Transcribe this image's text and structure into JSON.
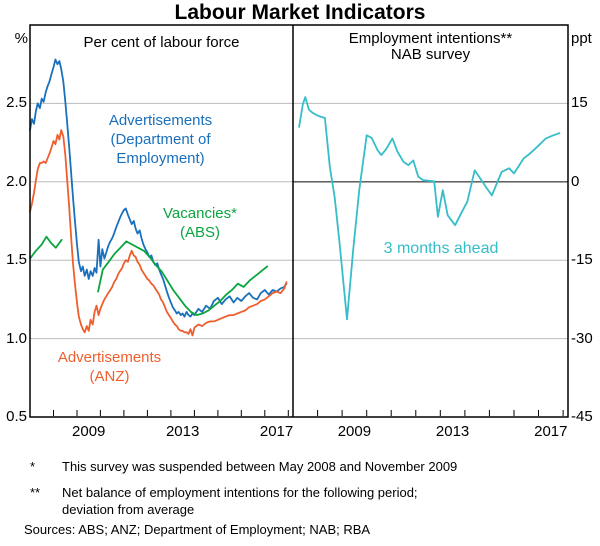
{
  "title": "Labour Market Indicators",
  "footnotes": [
    {
      "marker": "*",
      "text": "This survey was suspended between May 2008 and November 2009"
    },
    {
      "marker": "**",
      "text": "Net balance of employment intentions for the following period; deviation from average"
    }
  ],
  "sources": "Sources: ABS; ANZ; Department of Employment; NAB; RBA",
  "colors": {
    "blue": "#1a70bd",
    "orange": "#ee5f2d",
    "green": "#0aa53f",
    "cyan": "#35bdc8",
    "grid": "#bcbcbc",
    "zero_line": "#4d4d4d",
    "frame": "#000000"
  },
  "chart_data": [
    {
      "type": "line",
      "panel": "left",
      "header": "Per cent of labour force",
      "unit": "%",
      "ylim": [
        0.5,
        3.0
      ],
      "yticks": [
        0.5,
        1.0,
        1.5,
        2.0,
        2.5
      ],
      "ytick_labels": [
        "0.5",
        "1.0",
        "1.5",
        "2.0",
        "2.5"
      ],
      "xlim": [
        2007.0,
        2018.2
      ],
      "grid": true,
      "xtick_labels": [
        {
          "label": "2009",
          "at": 2009.5
        },
        {
          "label": "2013",
          "at": 2013.5
        },
        {
          "label": "2017",
          "at": 2017.5
        }
      ],
      "series": [
        {
          "name": "Advertisements (Department of Employment)",
          "color": "#1a70bd",
          "segments": [
            {
              "x": [
                2007.0,
                2007.08,
                2007.17,
                2007.25,
                2007.33,
                2007.42,
                2007.5,
                2007.58,
                2007.67,
                2007.75,
                2007.83,
                2007.92,
                2008.0,
                2008.08,
                2008.17,
                2008.25,
                2008.33,
                2008.42,
                2008.5,
                2008.58,
                2008.67,
                2008.75,
                2008.83,
                2008.92,
                2009.0,
                2009.08,
                2009.17,
                2009.25,
                2009.33,
                2009.42,
                2009.5,
                2009.58,
                2009.67,
                2009.75,
                2009.83,
                2009.92,
                2010.0,
                2010.08,
                2010.17,
                2010.25,
                2010.33,
                2010.42,
                2010.5,
                2010.58,
                2010.67,
                2010.75,
                2010.83,
                2010.92,
                2011.0,
                2011.08,
                2011.17,
                2011.25,
                2011.33,
                2011.42,
                2011.5,
                2011.58,
                2011.67,
                2011.75,
                2011.83,
                2011.92,
                2012.0,
                2012.08,
                2012.17,
                2012.25,
                2012.33,
                2012.42,
                2012.5,
                2012.58,
                2012.67,
                2012.75,
                2012.83,
                2012.92,
                2013.0,
                2013.08,
                2013.17,
                2013.25,
                2013.33,
                2013.42,
                2013.5,
                2013.58,
                2013.67,
                2013.75,
                2013.83,
                2013.92,
                2014.0,
                2014.17,
                2014.33,
                2014.5,
                2014.67,
                2014.83,
                2015.0,
                2015.17,
                2015.33,
                2015.5,
                2015.67,
                2015.83,
                2016.0,
                2016.17,
                2016.33,
                2016.5,
                2016.67,
                2016.83,
                2017.0,
                2017.17,
                2017.33,
                2017.5,
                2017.67,
                2017.83,
                2017.92
              ],
              "y": [
                2.33,
                2.4,
                2.37,
                2.45,
                2.5,
                2.47,
                2.53,
                2.51,
                2.57,
                2.61,
                2.64,
                2.69,
                2.73,
                2.78,
                2.75,
                2.77,
                2.72,
                2.64,
                2.52,
                2.38,
                2.22,
                2.06,
                1.9,
                1.74,
                1.6,
                1.49,
                1.43,
                1.46,
                1.4,
                1.44,
                1.38,
                1.43,
                1.4,
                1.45,
                1.42,
                1.63,
                1.46,
                1.57,
                1.51,
                1.55,
                1.59,
                1.62,
                1.64,
                1.67,
                1.71,
                1.74,
                1.77,
                1.8,
                1.82,
                1.83,
                1.79,
                1.76,
                1.73,
                1.75,
                1.7,
                1.67,
                1.69,
                1.64,
                1.6,
                1.57,
                1.55,
                1.52,
                1.53,
                1.49,
                1.47,
                1.48,
                1.44,
                1.41,
                1.38,
                1.34,
                1.3,
                1.26,
                1.23,
                1.2,
                1.18,
                1.16,
                1.17,
                1.15,
                1.16,
                1.14,
                1.17,
                1.15,
                1.14,
                1.16,
                1.15,
                1.19,
                1.17,
                1.21,
                1.19,
                1.24,
                1.26,
                1.22,
                1.25,
                1.27,
                1.23,
                1.26,
                1.24,
                1.27,
                1.29,
                1.26,
                1.25,
                1.29,
                1.31,
                1.28,
                1.31,
                1.3,
                1.32,
                1.33,
                1.35
              ]
            }
          ]
        },
        {
          "name": "Advertisements (ANZ)",
          "color": "#ee5f2d",
          "segments": [
            {
              "x": [
                2007.0,
                2007.08,
                2007.17,
                2007.25,
                2007.33,
                2007.42,
                2007.5,
                2007.58,
                2007.67,
                2007.75,
                2007.83,
                2007.92,
                2008.0,
                2008.08,
                2008.17,
                2008.25,
                2008.33,
                2008.42,
                2008.5,
                2008.58,
                2008.67,
                2008.75,
                2008.83,
                2008.92,
                2009.0,
                2009.08,
                2009.17,
                2009.25,
                2009.33,
                2009.42,
                2009.5,
                2009.58,
                2009.67,
                2009.75,
                2009.83,
                2009.92,
                2010.0,
                2010.08,
                2010.17,
                2010.25,
                2010.33,
                2010.42,
                2010.5,
                2010.58,
                2010.67,
                2010.75,
                2010.83,
                2010.92,
                2011.0,
                2011.08,
                2011.17,
                2011.25,
                2011.33,
                2011.42,
                2011.5,
                2011.58,
                2011.67,
                2011.75,
                2011.83,
                2011.92,
                2012.0,
                2012.08,
                2012.17,
                2012.25,
                2012.33,
                2012.42,
                2012.5,
                2012.58,
                2012.67,
                2012.75,
                2012.83,
                2012.92,
                2013.0,
                2013.08,
                2013.17,
                2013.25,
                2013.33,
                2013.42,
                2013.5,
                2013.58,
                2013.67,
                2013.75,
                2013.83,
                2013.92,
                2014.0,
                2014.17,
                2014.33,
                2014.5,
                2014.67,
                2014.83,
                2015.0,
                2015.17,
                2015.33,
                2015.5,
                2015.67,
                2015.83,
                2016.0,
                2016.17,
                2016.33,
                2016.5,
                2016.67,
                2016.83,
                2017.0,
                2017.17,
                2017.33,
                2017.5,
                2017.67,
                2017.83,
                2017.92
              ],
              "y": [
                1.81,
                1.86,
                1.93,
                2.01,
                2.08,
                2.12,
                2.12,
                2.13,
                2.12,
                2.15,
                2.18,
                2.22,
                2.26,
                2.24,
                2.3,
                2.27,
                2.33,
                2.29,
                2.18,
                2.02,
                1.84,
                1.65,
                1.48,
                1.34,
                1.23,
                1.14,
                1.09,
                1.06,
                1.04,
                1.08,
                1.05,
                1.12,
                1.09,
                1.17,
                1.21,
                1.15,
                1.19,
                1.22,
                1.25,
                1.27,
                1.29,
                1.31,
                1.33,
                1.36,
                1.38,
                1.41,
                1.43,
                1.45,
                1.48,
                1.5,
                1.49,
                1.53,
                1.56,
                1.53,
                1.52,
                1.49,
                1.47,
                1.44,
                1.42,
                1.4,
                1.38,
                1.37,
                1.35,
                1.34,
                1.32,
                1.3,
                1.28,
                1.25,
                1.23,
                1.2,
                1.17,
                1.15,
                1.13,
                1.11,
                1.09,
                1.08,
                1.06,
                1.05,
                1.05,
                1.04,
                1.04,
                1.03,
                1.06,
                1.02,
                1.07,
                1.09,
                1.08,
                1.1,
                1.11,
                1.11,
                1.12,
                1.13,
                1.14,
                1.15,
                1.15,
                1.16,
                1.17,
                1.18,
                1.2,
                1.21,
                1.22,
                1.24,
                1.25,
                1.27,
                1.29,
                1.3,
                1.29,
                1.32,
                1.36
              ]
            }
          ]
        },
        {
          "name": "Vacancies (ABS)",
          "color": "#0aa53f",
          "note": "survey suspended May 2008 - November 2009",
          "segments": [
            {
              "x": [
                2007.0,
                2007.25,
                2007.5,
                2007.7,
                2007.9,
                2008.1,
                2008.35
              ],
              "y": [
                1.51,
                1.56,
                1.6,
                1.65,
                1.61,
                1.58,
                1.63
              ]
            },
            {
              "x": [
                2009.9,
                2010.1,
                2010.35,
                2010.6,
                2010.85,
                2011.1,
                2011.35,
                2011.6,
                2011.85,
                2012.1,
                2012.35,
                2012.6,
                2012.85,
                2013.1,
                2013.35,
                2013.6,
                2013.85,
                2014.1,
                2014.35,
                2014.6,
                2014.85,
                2015.1,
                2015.35,
                2015.6,
                2015.85,
                2016.1,
                2016.35,
                2016.6,
                2016.85,
                2017.1
              ],
              "y": [
                1.3,
                1.44,
                1.49,
                1.54,
                1.58,
                1.62,
                1.6,
                1.58,
                1.56,
                1.52,
                1.47,
                1.43,
                1.37,
                1.31,
                1.26,
                1.21,
                1.17,
                1.15,
                1.16,
                1.18,
                1.21,
                1.24,
                1.28,
                1.31,
                1.35,
                1.33,
                1.37,
                1.4,
                1.43,
                1.46
              ]
            }
          ]
        }
      ],
      "annotations": [
        {
          "color": "#1a70bd",
          "lines": [
            "Advertisements",
            "(Department of",
            "Employment)"
          ]
        },
        {
          "color": "#0aa53f",
          "lines": [
            "Vacancies*",
            "(ABS)"
          ]
        },
        {
          "color": "#ee5f2d",
          "lines": [
            "Advertisements",
            "(ANZ)"
          ]
        }
      ]
    },
    {
      "type": "line",
      "panel": "right",
      "header": "Employment intentions**",
      "subheader": "NAB survey",
      "unit": "ppt",
      "ylim": [
        -45,
        30
      ],
      "yticks": [
        -45,
        -30,
        -15,
        0,
        15
      ],
      "ytick_labels": [
        "-45",
        "-30",
        "-15",
        "0",
        "15"
      ],
      "zero_line": true,
      "xlim": [
        2007.0,
        2018.2
      ],
      "grid": true,
      "xtick_labels": [
        {
          "label": "2009",
          "at": 2009.5
        },
        {
          "label": "2013",
          "at": 2013.5
        },
        {
          "label": "2017",
          "at": 2017.5
        }
      ],
      "series": [
        {
          "name": "3 months ahead",
          "color": "#35bdc8",
          "segments": [
            {
              "x": [
                2007.25,
                2007.4,
                2007.5,
                2007.65,
                2007.8,
                2007.95,
                2008.1,
                2008.3,
                2008.5,
                2008.7,
                2008.9,
                2009.2,
                2009.45,
                2009.7,
                2010.0,
                2010.2,
                2010.45,
                2010.6,
                2010.8,
                2011.05,
                2011.25,
                2011.5,
                2011.7,
                2011.9,
                2012.1,
                2012.3,
                2012.55,
                2012.75,
                2012.9,
                2013.1,
                2013.3,
                2013.6,
                2013.85,
                2014.1,
                2014.4,
                2014.65,
                2014.9,
                2015.1,
                2015.5,
                2015.8,
                2016.0,
                2016.4,
                2016.65,
                2016.95,
                2017.3,
                2017.6,
                2017.85
              ],
              "y": [
                10.5,
                14.8,
                16.2,
                13.8,
                13.2,
                12.8,
                12.5,
                12.2,
                2.9,
                -3.0,
                -12.0,
                -26.3,
                -13.0,
                -1.5,
                8.9,
                8.4,
                6.0,
                5.1,
                6.3,
                8.3,
                5.8,
                3.8,
                3.2,
                4.1,
                1.0,
                0.3,
                0.2,
                0.1,
                -6.7,
                -1.6,
                -6.4,
                -8.3,
                -6.0,
                -3.8,
                2.2,
                0.5,
                -1.3,
                -2.6,
                1.9,
                2.6,
                1.6,
                4.5,
                5.4,
                6.7,
                8.3,
                8.9,
                9.3
              ]
            }
          ]
        }
      ],
      "annotations": [
        {
          "color": "#35bdc8",
          "lines": [
            "3 months ahead"
          ]
        }
      ]
    }
  ]
}
